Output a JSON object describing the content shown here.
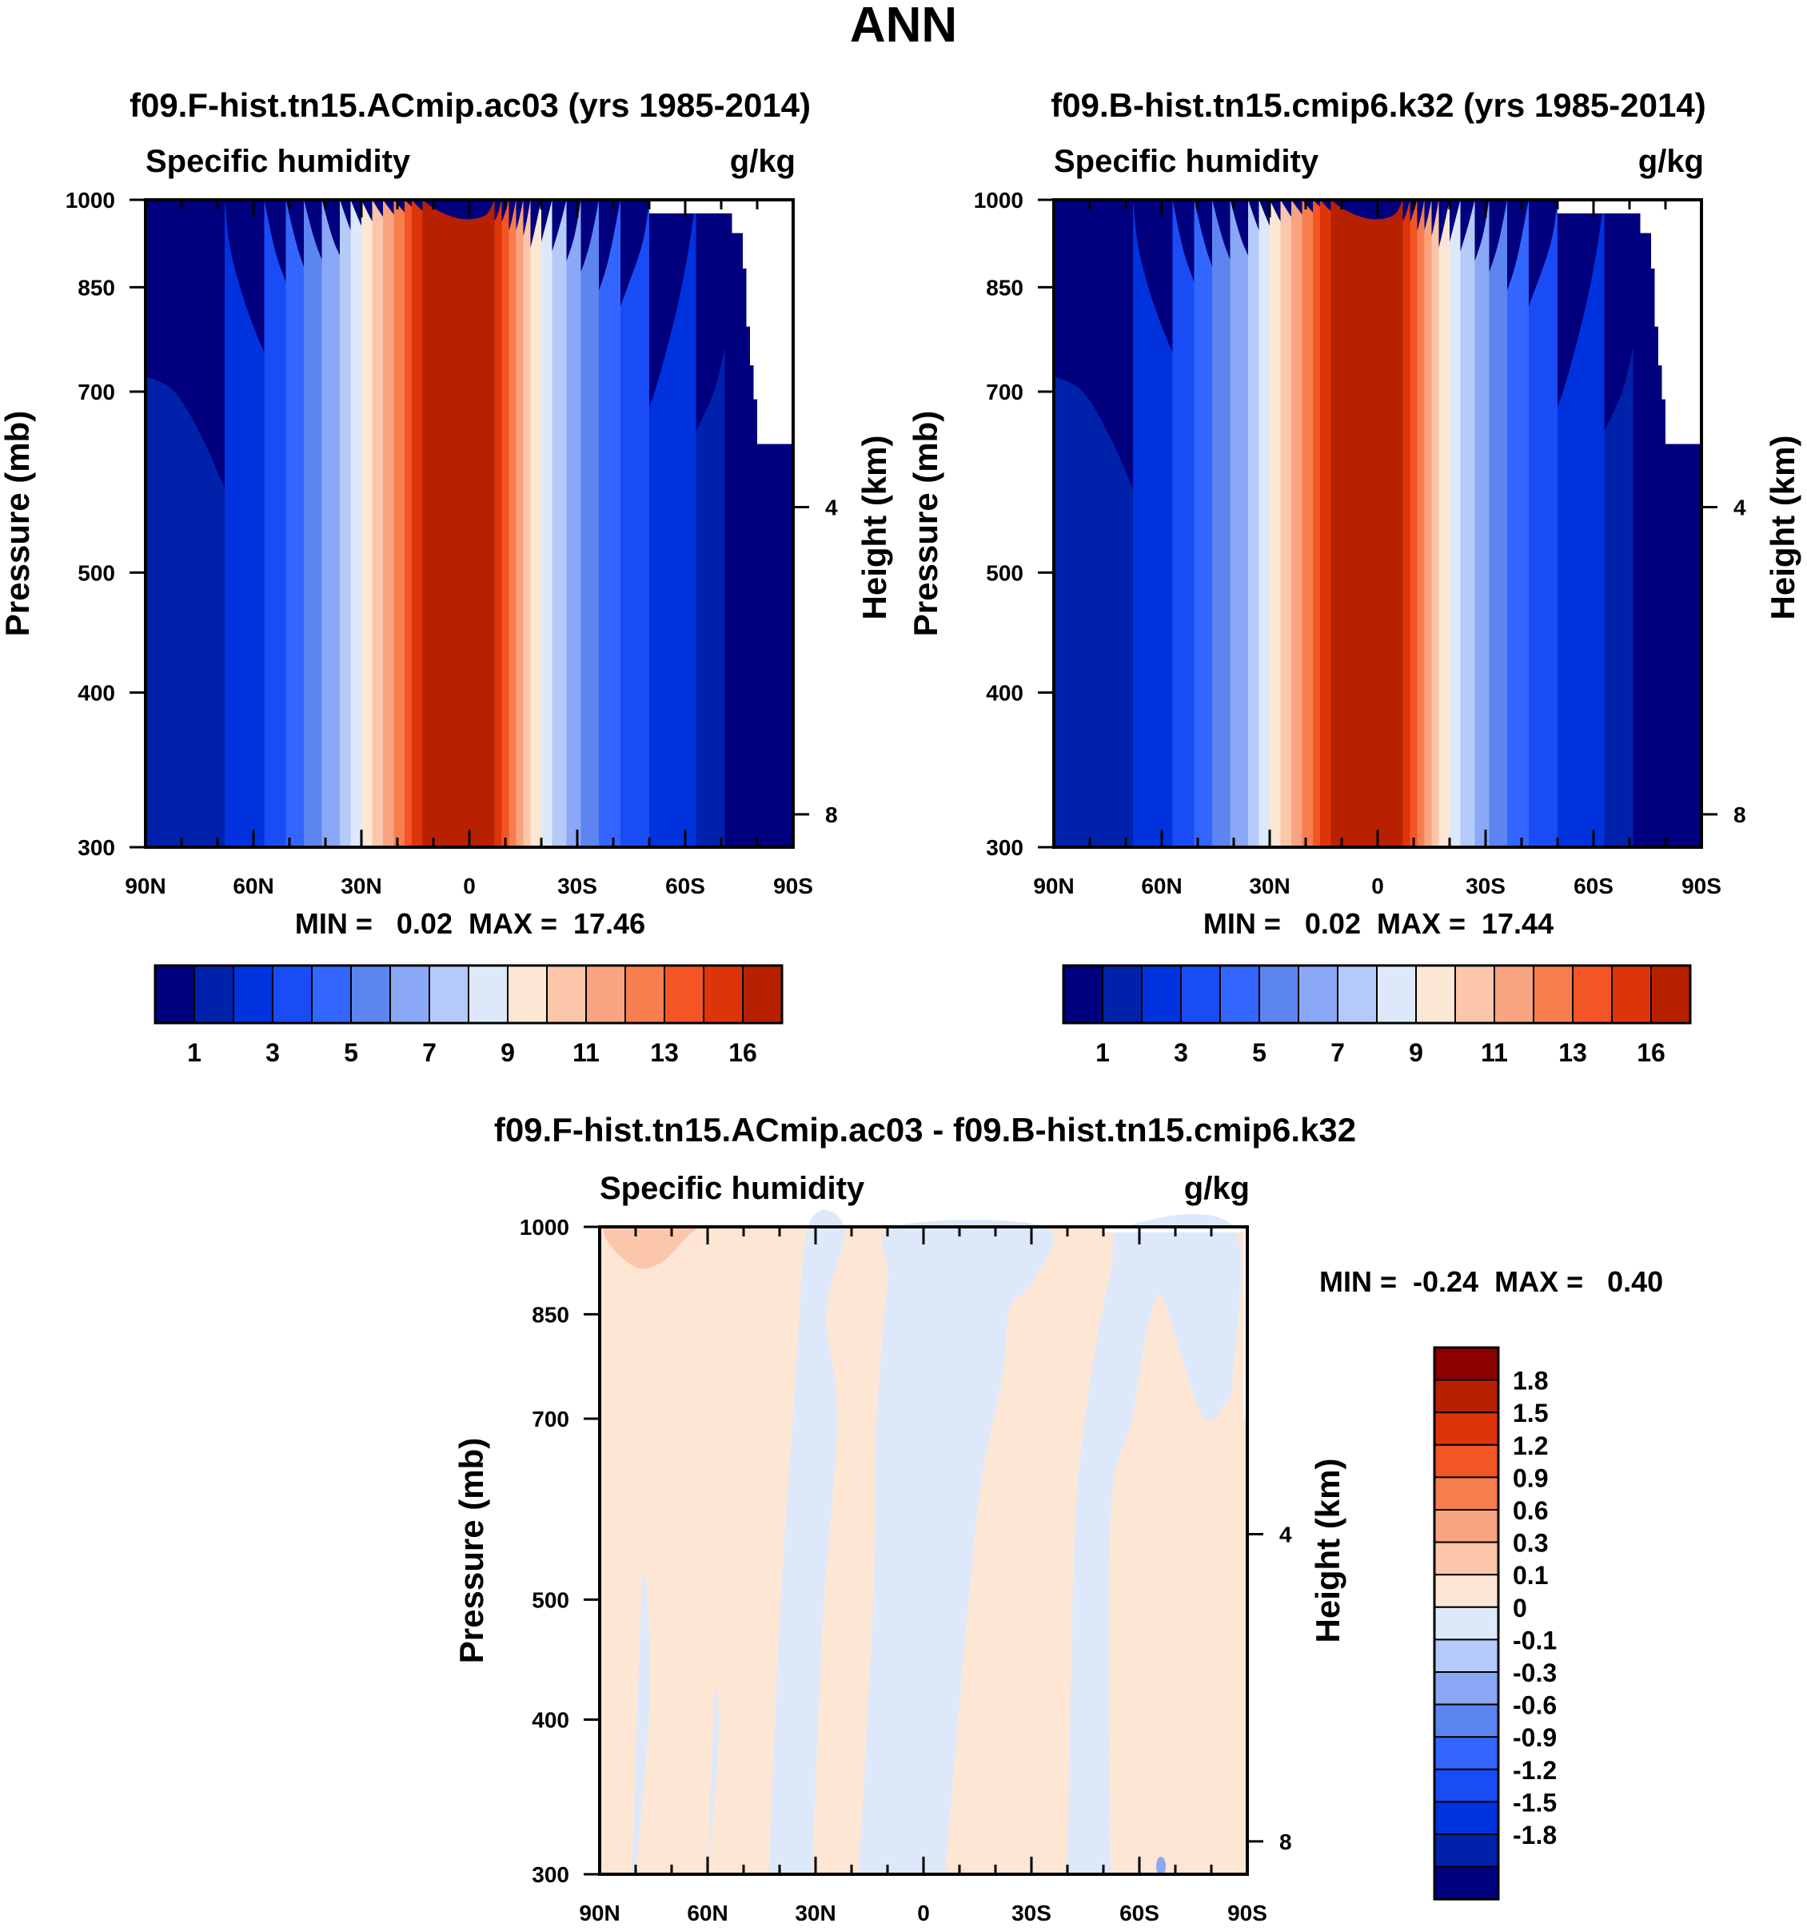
{
  "season": "ANN",
  "panels": [
    {
      "id": "top-left",
      "title": "f09.F-hist.tn15.ACmip.ac03 (yrs 1985-2014)",
      "variable": "Specific humidity",
      "units": "g/kg",
      "ylabel": "Pressure (mb)",
      "ylabel_right": "Height (km)",
      "min_max": "MIN =   0.02  MAX =  17.46"
    },
    {
      "id": "top-right",
      "title": "f09.B-hist.tn15.cmip6.k32 (yrs 1985-2014)",
      "variable": "Specific humidity",
      "units": "g/kg",
      "ylabel": "Pressure (mb)",
      "ylabel_right": "Height (km)",
      "min_max": "MIN =   0.02  MAX =  17.44"
    },
    {
      "id": "bottom",
      "title": "f09.F-hist.tn15.ACmip.ac03 - f09.B-hist.tn15.cmip6.k32",
      "variable": "Specific humidity",
      "units": "g/kg",
      "ylabel": "Pressure (mb)",
      "ylabel_right": "Height (km)",
      "min_max": "MIN =  -0.24  MAX =   0.40"
    }
  ],
  "chart_data": [
    {
      "type": "heatmap",
      "title": "f09.F-hist.tn15.ACmip.ac03 (yrs 1985-2014)",
      "field": "zonal mean specific humidity (g/kg)",
      "x_ticks": [
        "90N",
        "60N",
        "30N",
        "0",
        "30S",
        "60S",
        "90S"
      ],
      "x_values": [
        90,
        60,
        30,
        0,
        -30,
        -60,
        -90
      ],
      "y_ticks": [
        300,
        400,
        500,
        700,
        850,
        1000
      ],
      "y_range": [
        1000,
        300
      ],
      "height_ticks_km": [
        4,
        8
      ],
      "peak": {
        "lat": 0,
        "pressure": 1000,
        "value": 17.46
      },
      "contour_levels": [
        1,
        2,
        3,
        4,
        5,
        6,
        7,
        8,
        9,
        10,
        11,
        12,
        13,
        14,
        16
      ],
      "colorbar_labels": [
        "1",
        "3",
        "5",
        "7",
        "9",
        "11",
        "13",
        "16"
      ],
      "min": 0.02,
      "max": 17.46
    },
    {
      "type": "heatmap",
      "title": "f09.B-hist.tn15.cmip6.k32 (yrs 1985-2014)",
      "field": "zonal mean specific humidity (g/kg)",
      "x_ticks": [
        "90N",
        "60N",
        "30N",
        "0",
        "30S",
        "60S",
        "90S"
      ],
      "x_values": [
        90,
        60,
        30,
        0,
        -30,
        -60,
        -90
      ],
      "y_ticks": [
        300,
        400,
        500,
        700,
        850,
        1000
      ],
      "y_range": [
        1000,
        300
      ],
      "height_ticks_km": [
        4,
        8
      ],
      "peak": {
        "lat": 0,
        "pressure": 1000,
        "value": 17.44
      },
      "contour_levels": [
        1,
        2,
        3,
        4,
        5,
        6,
        7,
        8,
        9,
        10,
        11,
        12,
        13,
        14,
        16
      ],
      "colorbar_labels": [
        "1",
        "3",
        "5",
        "7",
        "9",
        "11",
        "13",
        "16"
      ],
      "min": 0.02,
      "max": 17.44
    },
    {
      "type": "heatmap",
      "title": "f09.F-hist.tn15.ACmip.ac03 - f09.B-hist.tn15.cmip6.k32",
      "field": "difference in specific humidity (g/kg)",
      "x_ticks": [
        "90N",
        "60N",
        "30N",
        "0",
        "30S",
        "60S",
        "90S"
      ],
      "x_values": [
        90,
        60,
        30,
        0,
        -30,
        -60,
        -90
      ],
      "y_ticks": [
        300,
        400,
        500,
        700,
        850,
        1000
      ],
      "y_range": [
        1000,
        300
      ],
      "height_ticks_km": [
        4,
        8
      ],
      "negative_regions_lat": [
        [
          74,
          70
        ],
        [
          40,
          36
        ],
        [
          -9,
          -11
        ],
        [
          -40,
          -55
        ],
        [
          -58,
          -85
        ]
      ],
      "positive_highlight": {
        "lat_range": [
          90,
          55
        ],
        "pressure_range": [
          900,
          1000
        ],
        "value_class": "0.1-0.3"
      },
      "colorbar_labels": [
        "1.8",
        "1.5",
        "1.2",
        "0.9",
        "0.6",
        "0.3",
        "0.1",
        "0",
        "-0.1",
        "-0.3",
        "-0.6",
        "-0.9",
        "-1.2",
        "-1.5",
        "-1.8"
      ],
      "min": -0.24,
      "max": 0.4
    }
  ],
  "colors": {
    "seq": [
      "#00007f",
      "#0022aa",
      "#0033dd",
      "#1a4cf5",
      "#3366ff",
      "#5c85f0",
      "#8aa8f5",
      "#b4caf8",
      "#dde9fb",
      "#fce6d4",
      "#fbc6aa",
      "#f8a480",
      "#f77e4e",
      "#f35524",
      "#de3409",
      "#b82100",
      "#8c0000"
    ],
    "diff": [
      "#8c0000",
      "#b82100",
      "#de3409",
      "#f35524",
      "#f77e4e",
      "#f8a480",
      "#fbc6aa",
      "#fde6d4",
      "#dde9fb",
      "#b4caf8",
      "#8aa8f5",
      "#5c85f0",
      "#3366ff",
      "#1a4cf5",
      "#0033dd",
      "#0022aa",
      "#00007f"
    ]
  }
}
